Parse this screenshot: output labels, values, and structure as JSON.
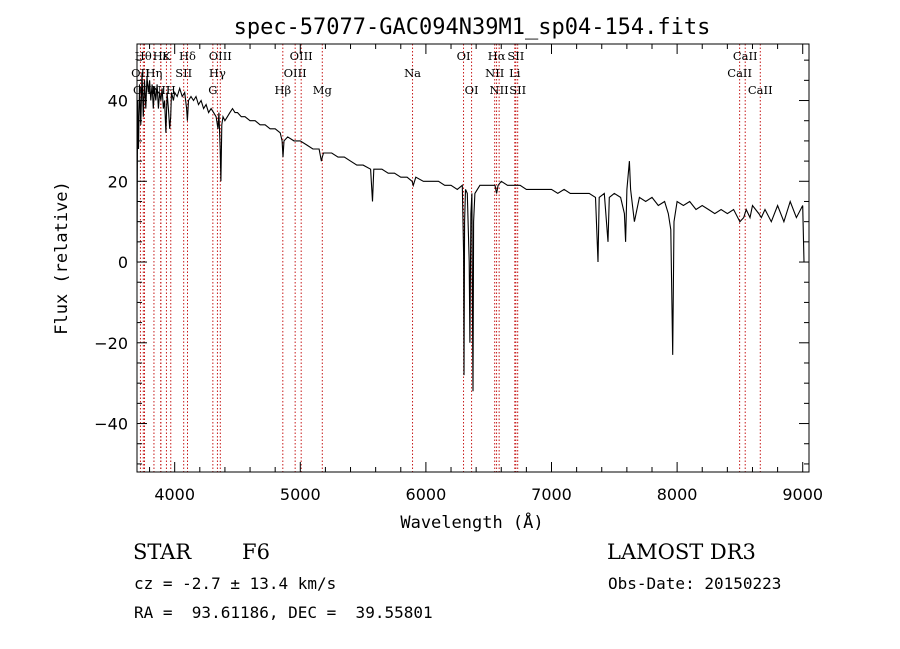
{
  "chart_data": {
    "type": "line",
    "title": "spec-57077-GAC094N39M1_sp04-154.fits",
    "xlabel": "Wavelength (Å)",
    "ylabel": "Flux (relative)",
    "xlim": [
      3700,
      9050
    ],
    "ylim": [
      -52,
      54
    ],
    "xticks": [
      4000,
      5000,
      6000,
      7000,
      8000,
      9000
    ],
    "yticks": [
      -40,
      -20,
      0,
      20,
      40
    ],
    "grid": false,
    "series": [
      {
        "points": [
          [
            3700,
            0
          ],
          [
            3705,
            40
          ],
          [
            3712,
            28
          ],
          [
            3720,
            44
          ],
          [
            3730,
            34
          ],
          [
            3740,
            47
          ],
          [
            3750,
            36
          ],
          [
            3760,
            45
          ],
          [
            3770,
            38
          ],
          [
            3780,
            46
          ],
          [
            3790,
            42
          ],
          [
            3800,
            45
          ],
          [
            3810,
            40
          ],
          [
            3820,
            44
          ],
          [
            3830,
            38
          ],
          [
            3840,
            43
          ],
          [
            3850,
            40
          ],
          [
            3860,
            44
          ],
          [
            3870,
            38
          ],
          [
            3880,
            42
          ],
          [
            3890,
            40
          ],
          [
            3900,
            43
          ],
          [
            3910,
            38
          ],
          [
            3920,
            40
          ],
          [
            3930,
            32
          ],
          [
            3940,
            42
          ],
          [
            3950,
            38
          ],
          [
            3960,
            33
          ],
          [
            3968,
            36
          ],
          [
            3975,
            42
          ],
          [
            3990,
            40
          ],
          [
            4000,
            42
          ],
          [
            4020,
            41
          ],
          [
            4040,
            43
          ],
          [
            4060,
            41
          ],
          [
            4080,
            42
          ],
          [
            4095,
            38
          ],
          [
            4101,
            35
          ],
          [
            4110,
            40
          ],
          [
            4130,
            41
          ],
          [
            4150,
            40
          ],
          [
            4170,
            41
          ],
          [
            4190,
            39
          ],
          [
            4210,
            40
          ],
          [
            4230,
            38
          ],
          [
            4250,
            39
          ],
          [
            4270,
            37
          ],
          [
            4290,
            38
          ],
          [
            4310,
            37
          ],
          [
            4330,
            36
          ],
          [
            4345,
            33
          ],
          [
            4352,
            37
          ],
          [
            4362,
            28
          ],
          [
            4368,
            20
          ],
          [
            4375,
            34
          ],
          [
            4385,
            36
          ],
          [
            4400,
            35
          ],
          [
            4420,
            36
          ],
          [
            4440,
            37
          ],
          [
            4460,
            38
          ],
          [
            4480,
            37
          ],
          [
            4500,
            37
          ],
          [
            4530,
            36
          ],
          [
            4560,
            36
          ],
          [
            4600,
            35
          ],
          [
            4640,
            35
          ],
          [
            4680,
            34
          ],
          [
            4720,
            34
          ],
          [
            4760,
            33
          ],
          [
            4800,
            33
          ],
          [
            4840,
            32
          ],
          [
            4855,
            30
          ],
          [
            4862,
            26
          ],
          [
            4870,
            30
          ],
          [
            4900,
            31
          ],
          [
            4950,
            30
          ],
          [
            5000,
            30
          ],
          [
            5050,
            29
          ],
          [
            5100,
            28
          ],
          [
            5150,
            28
          ],
          [
            5168,
            25
          ],
          [
            5175,
            26
          ],
          [
            5185,
            27
          ],
          [
            5250,
            27
          ],
          [
            5300,
            26
          ],
          [
            5350,
            26
          ],
          [
            5400,
            25
          ],
          [
            5450,
            24
          ],
          [
            5500,
            24
          ],
          [
            5560,
            23
          ],
          [
            5575,
            15
          ],
          [
            5585,
            23
          ],
          [
            5650,
            23
          ],
          [
            5700,
            22
          ],
          [
            5750,
            22
          ],
          [
            5800,
            21
          ],
          [
            5850,
            21
          ],
          [
            5890,
            20
          ],
          [
            5900,
            19
          ],
          [
            5920,
            21
          ],
          [
            5980,
            20
          ],
          [
            6050,
            20
          ],
          [
            6100,
            20
          ],
          [
            6150,
            19
          ],
          [
            6200,
            19
          ],
          [
            6250,
            18
          ],
          [
            6290,
            19
          ],
          [
            6300,
            2
          ],
          [
            6303,
            -28
          ],
          [
            6308,
            10
          ],
          [
            6315,
            18
          ],
          [
            6330,
            17
          ],
          [
            6345,
            0
          ],
          [
            6350,
            -20
          ],
          [
            6358,
            12
          ],
          [
            6366,
            17
          ],
          [
            6370,
            -10
          ],
          [
            6375,
            -32
          ],
          [
            6380,
            10
          ],
          [
            6390,
            17
          ],
          [
            6430,
            19
          ],
          [
            6470,
            19
          ],
          [
            6500,
            19
          ],
          [
            6550,
            19
          ],
          [
            6563,
            17
          ],
          [
            6575,
            19
          ],
          [
            6600,
            20
          ],
          [
            6650,
            19
          ],
          [
            6700,
            19
          ],
          [
            6750,
            19
          ],
          [
            6800,
            18
          ],
          [
            6850,
            18
          ],
          [
            6900,
            18
          ],
          [
            6950,
            18
          ],
          [
            7000,
            18
          ],
          [
            7050,
            17
          ],
          [
            7100,
            18
          ],
          [
            7150,
            17
          ],
          [
            7200,
            17
          ],
          [
            7250,
            17
          ],
          [
            7300,
            17
          ],
          [
            7350,
            16
          ],
          [
            7370,
            0
          ],
          [
            7380,
            16
          ],
          [
            7420,
            17
          ],
          [
            7450,
            5
          ],
          [
            7460,
            16
          ],
          [
            7500,
            17
          ],
          [
            7550,
            16
          ],
          [
            7580,
            12
          ],
          [
            7590,
            5
          ],
          [
            7600,
            18
          ],
          [
            7620,
            25
          ],
          [
            7630,
            18
          ],
          [
            7660,
            10
          ],
          [
            7700,
            16
          ],
          [
            7750,
            15
          ],
          [
            7800,
            16
          ],
          [
            7850,
            14
          ],
          [
            7900,
            15
          ],
          [
            7930,
            12
          ],
          [
            7950,
            8
          ],
          [
            7965,
            -23
          ],
          [
            7975,
            10
          ],
          [
            8000,
            15
          ],
          [
            8050,
            14
          ],
          [
            8100,
            15
          ],
          [
            8150,
            13
          ],
          [
            8200,
            14
          ],
          [
            8250,
            13
          ],
          [
            8300,
            12
          ],
          [
            8350,
            13
          ],
          [
            8400,
            12
          ],
          [
            8450,
            13
          ],
          [
            8500,
            10
          ],
          [
            8530,
            11
          ],
          [
            8550,
            13
          ],
          [
            8580,
            11
          ],
          [
            8600,
            14
          ],
          [
            8650,
            12
          ],
          [
            8670,
            11
          ],
          [
            8700,
            13
          ],
          [
            8750,
            10
          ],
          [
            8800,
            14
          ],
          [
            8850,
            10
          ],
          [
            8900,
            15
          ],
          [
            8950,
            11
          ],
          [
            9000,
            14
          ],
          [
            9010,
            0
          ]
        ]
      }
    ],
    "line_marks": [
      {
        "label": "OII",
        "wavelength": 3727,
        "row": 1
      },
      {
        "label": "Hθ",
        "wavelength": 3750,
        "row": 0
      },
      {
        "label": "OIII",
        "wavelength": 3760,
        "row": 2
      },
      {
        "label": "Hη",
        "wavelength": 3835,
        "row": 1
      },
      {
        "label": "K",
        "wavelength": 3934,
        "row": 0
      },
      {
        "label": "Hε",
        "wavelength": 3889,
        "row": 0
      },
      {
        "label": "NII",
        "wavelength": 3890,
        "row": 2
      },
      {
        "label": "H",
        "wavelength": 3969,
        "row": 2
      },
      {
        "label": "SII",
        "wavelength": 4072,
        "row": 1
      },
      {
        "label": "Hδ",
        "wavelength": 4102,
        "row": 0
      },
      {
        "label": "G",
        "wavelength": 4304,
        "row": 2
      },
      {
        "label": "OIII",
        "wavelength": 4363,
        "row": 0
      },
      {
        "label": "Hγ",
        "wavelength": 4340,
        "row": 1
      },
      {
        "label": "Hβ",
        "wavelength": 4861,
        "row": 2
      },
      {
        "label": "OIII",
        "wavelength": 4959,
        "row": 1
      },
      {
        "label": "OIII",
        "wavelength": 5007,
        "row": 0
      },
      {
        "label": "Mg",
        "wavelength": 5175,
        "row": 2
      },
      {
        "label": "Na",
        "wavelength": 5894,
        "row": 1
      },
      {
        "label": "OI",
        "wavelength": 6300,
        "row": 0
      },
      {
        "label": "OI",
        "wavelength": 6364,
        "row": 2
      },
      {
        "label": "NII",
        "wavelength": 6548,
        "row": 1
      },
      {
        "label": "Hα",
        "wavelength": 6563,
        "row": 0
      },
      {
        "label": "NII",
        "wavelength": 6583,
        "row": 2
      },
      {
        "label": "SII",
        "wavelength": 6716,
        "row": 0
      },
      {
        "label": "Li",
        "wavelength": 6708,
        "row": 1
      },
      {
        "label": "SII",
        "wavelength": 6731,
        "row": 2
      },
      {
        "label": "CaII",
        "wavelength": 8498,
        "row": 1
      },
      {
        "label": "CaII",
        "wavelength": 8542,
        "row": 0
      },
      {
        "label": "CaII",
        "wavelength": 8662,
        "row": 2
      }
    ]
  },
  "footer": {
    "object_class": "STAR",
    "subclass": "F6",
    "survey": "LAMOST DR3",
    "cz": "cz = -2.7 ± 13.4 km/s",
    "obs_date": "Obs-Date: 20150223",
    "coords": "RA =  93.61186, DEC =  39.55801"
  }
}
